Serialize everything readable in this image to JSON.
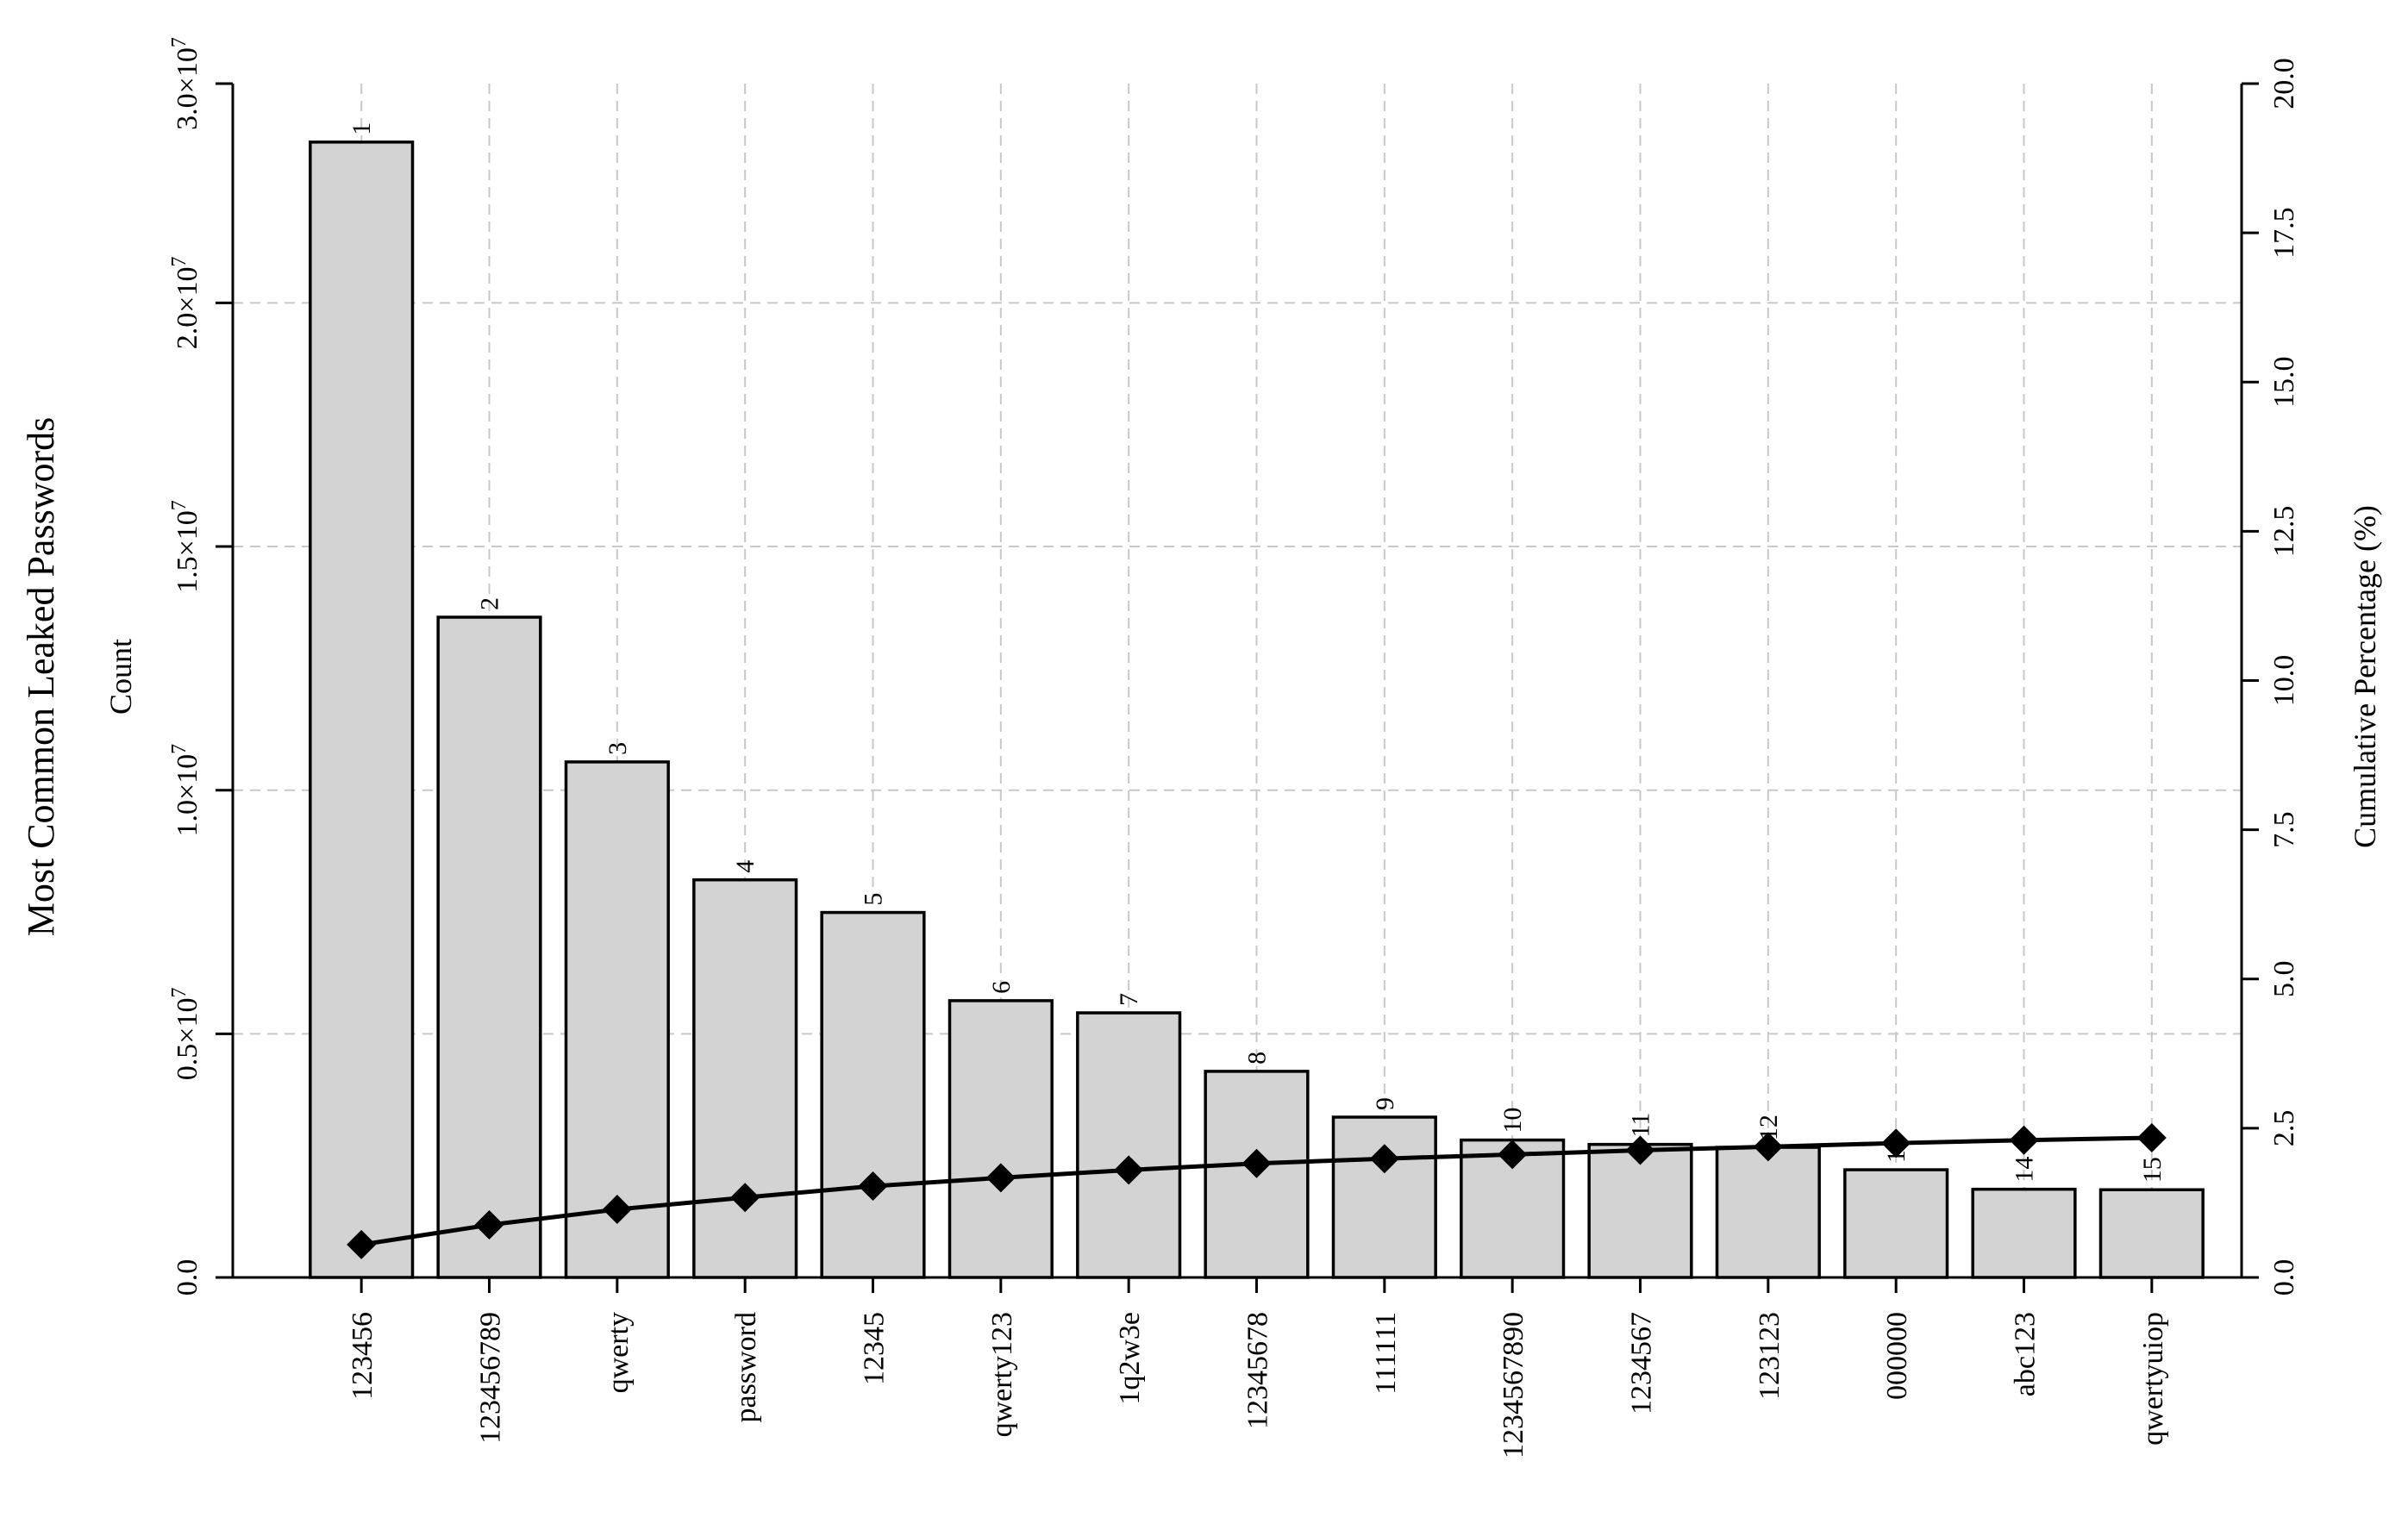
{
  "chart_data": {
    "type": "bar",
    "title": "Most Common Leaked Passwords",
    "ylabel": "Count",
    "y2label": "Cumulative Percentage (%)",
    "categories": [
      "123456",
      "123456789",
      "qwerty",
      "password",
      "12345",
      "qwerty123",
      "1q2w3e",
      "12345678",
      "111111",
      "1234567890",
      "1234567",
      "123123",
      "000000",
      "abc123",
      "qwertyuiop"
    ],
    "rank_labels": [
      "1",
      "2",
      "3",
      "4",
      "5",
      "6",
      "7",
      "8",
      "9",
      "10",
      "11",
      "12",
      "13",
      "14",
      "15"
    ],
    "series": [
      {
        "type": "bar",
        "axis": "left",
        "values": [
          23300000,
          13550000,
          10580000,
          8160000,
          7490000,
          5680000,
          5430000,
          4230000,
          3290000,
          2820000,
          2730000,
          2670000,
          2210000,
          1810000,
          1800000
        ]
      },
      {
        "type": "line",
        "axis": "right",
        "marker": "diamond",
        "values": [
          0.55,
          0.88,
          1.14,
          1.34,
          1.53,
          1.67,
          1.8,
          1.91,
          1.99,
          2.06,
          2.13,
          2.19,
          2.25,
          2.3,
          2.34
        ]
      }
    ],
    "ylim": [
      0,
      24500000
    ],
    "y2lim": [
      0,
      20
    ],
    "yticks": [
      0,
      5000000,
      10000000,
      15000000,
      20000000,
      30000000
    ],
    "ytick_labels": [
      {
        "mantissa": "0.0",
        "exponent": ""
      },
      {
        "mantissa": "0.5×10",
        "exponent": "7"
      },
      {
        "mantissa": "1.0×10",
        "exponent": "7"
      },
      {
        "mantissa": "1.5×10",
        "exponent": "7"
      },
      {
        "mantissa": "2.0×10",
        "exponent": "7"
      },
      {
        "mantissa": "3.0×10",
        "exponent": "7"
      }
    ],
    "y2ticks": [
      0,
      2.5,
      5,
      7.5,
      10,
      12.5,
      15,
      17.5,
      20
    ],
    "y2tick_labels": [
      "0.0",
      "2.5",
      "5.0",
      "7.5",
      "10.0",
      "12.5",
      "15.0",
      "17.5",
      "20.0"
    ],
    "grid": true,
    "colors": {
      "bar_fill": "#d3d3d3",
      "bar_edge": "#000000",
      "line": "#000000",
      "grid": "#c8c8c8"
    }
  }
}
